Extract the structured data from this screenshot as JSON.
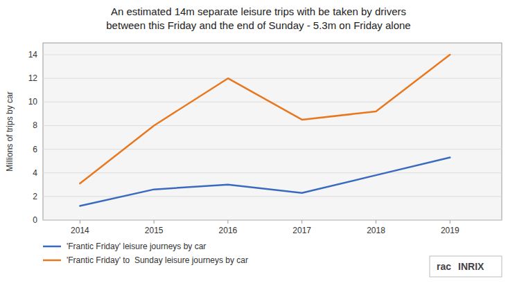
{
  "chart_data": {
    "type": "line",
    "title": "An estimated 14m separate leisure trips with be taken by drivers",
    "subtitle": "between this Friday and the end of Sunday - 5.3m on Friday alone",
    "y_label": "Millions of trips by car",
    "x": [
      2014,
      2015,
      2016,
      2017,
      2018,
      2019
    ],
    "xlim": [
      2013.5,
      2019.7
    ],
    "xticks": [
      2014,
      2015,
      2016,
      2017,
      2018,
      2019
    ],
    "ylim": [
      0,
      15
    ],
    "yticks": [
      0,
      2,
      4,
      6,
      8,
      10,
      12,
      14
    ],
    "grid": true,
    "legend": "bottom-left",
    "series": [
      {
        "name": "'Frantic Friday' leisure journeys by car",
        "color": "#3a6abf",
        "values": [
          1.2,
          2.6,
          3.0,
          2.3,
          3.8,
          5.3
        ]
      },
      {
        "name": "'Frantic Friday' to  Sunday leisure journeys by car",
        "color": "#e87820",
        "values": [
          3.1,
          8.0,
          12.0,
          8.5,
          9.2,
          14.0
        ]
      }
    ],
    "annotations": [
      "rac",
      "INRIX"
    ]
  }
}
